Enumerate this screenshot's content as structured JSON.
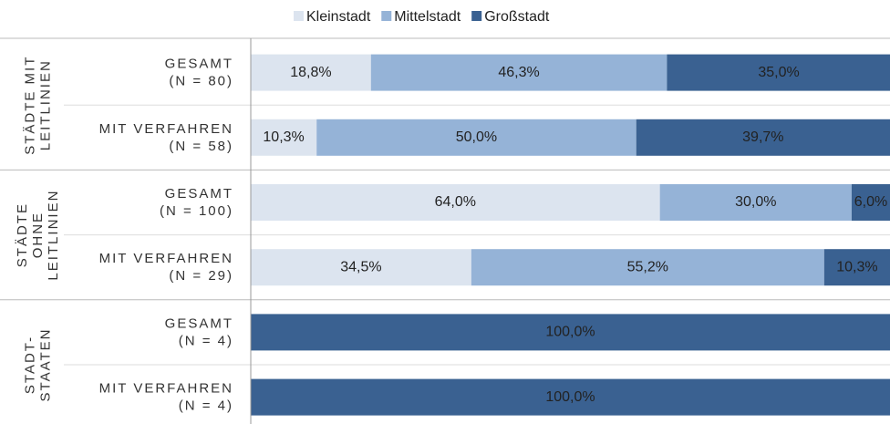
{
  "chart_data": {
    "type": "stacked-bar-horizontal",
    "groups": [
      {
        "name": [
          "STÄDTE MIT",
          "LEITLINIEN"
        ],
        "categories": [
          [
            "GESAMT",
            "(N = 80)"
          ],
          [
            "MIT VERFAHREN",
            "(N = 58)"
          ]
        ]
      },
      {
        "name": [
          "STÄDTE",
          "OHNE",
          "LEITLINIEN"
        ],
        "categories": [
          [
            "GESAMT",
            "(N = 100)"
          ],
          [
            "MIT VERFAHREN",
            "(N = 29)"
          ]
        ]
      },
      {
        "name": [
          "STADT-",
          "STAATEN"
        ],
        "categories": [
          [
            "GESAMT",
            "(N = 4)"
          ],
          [
            "MIT VERFAHREN",
            "(N = 4)"
          ]
        ]
      }
    ],
    "series": [
      {
        "name": "Kleinstadt",
        "color": "#dce4ef",
        "values": [
          18.8,
          10.3,
          64.0,
          34.5,
          0,
          0
        ],
        "value_labels": [
          "18,8%",
          "10,3%",
          "64,0%",
          "34,5%",
          null,
          null
        ]
      },
      {
        "name": "Mittelstadt",
        "color": "#95b3d7",
        "values": [
          46.3,
          50.0,
          30.0,
          55.2,
          0,
          0
        ],
        "value_labels": [
          "46,3%",
          "50,0%",
          "30,0%",
          "55,2%",
          null,
          null
        ]
      },
      {
        "name": "Großstadt",
        "color": "#3a6191",
        "values": [
          35.0,
          39.7,
          6.0,
          10.3,
          100,
          100
        ],
        "value_labels": [
          "35,0%",
          "39,7%",
          "6,0%",
          "10,3%",
          "100,0%",
          "100,0%"
        ]
      }
    ],
    "xlim": [
      0,
      100
    ],
    "legend": "top"
  }
}
